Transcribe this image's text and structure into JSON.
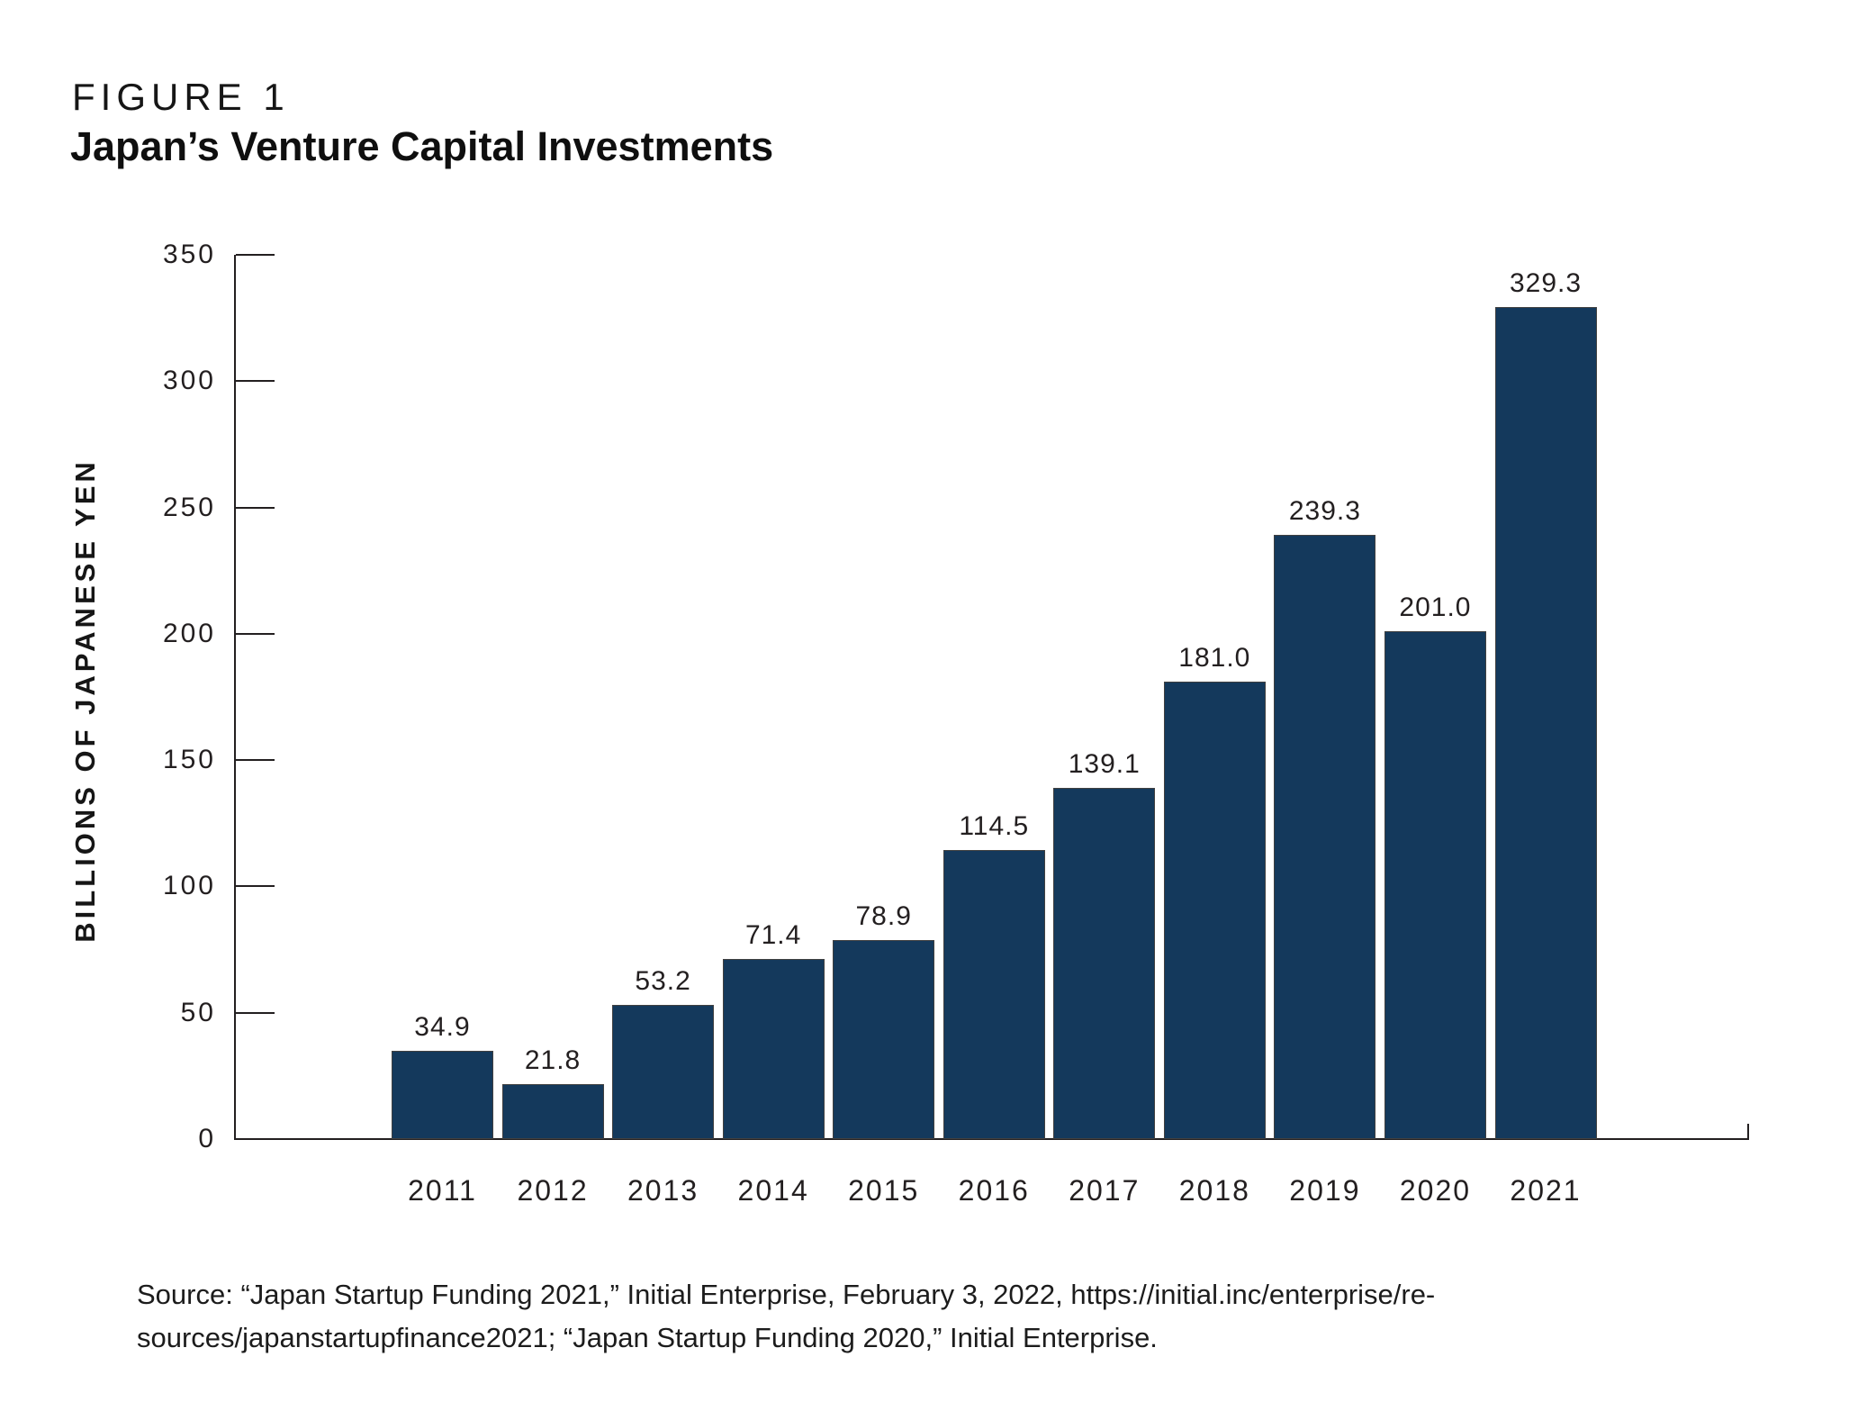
{
  "figure": {
    "label": "FIGURE 1",
    "title": "Japan’s Venture Capital Investments"
  },
  "chart_data": {
    "type": "bar",
    "title": "Japan’s Venture Capital Investments",
    "categories": [
      "2011",
      "2012",
      "2013",
      "2014",
      "2015",
      "2016",
      "2017",
      "2018",
      "2019",
      "2020",
      "2021"
    ],
    "values": [
      34.9,
      21.8,
      53.2,
      71.4,
      78.9,
      114.5,
      139.1,
      181.0,
      239.3,
      201.0,
      329.3
    ],
    "value_labels": [
      "34.9",
      "21.8",
      "53.2",
      "71.4",
      "78.9",
      "114.5",
      "139.1",
      "181.0",
      "239.3",
      "201.0",
      "329.3"
    ],
    "xlabel": "",
    "ylabel": "BILLIONS OF JAPANESE YEN",
    "ylim": [
      0,
      350
    ],
    "yticks": [
      0,
      50,
      100,
      150,
      200,
      250,
      300,
      350
    ],
    "ytick_labels": [
      "0",
      "50",
      "100",
      "150",
      "200",
      "250",
      "300",
      "350"
    ],
    "grid": false,
    "legend_position": "none",
    "bar_color": "#14395C",
    "axis_color": "#231f20",
    "label_color": "#231f20"
  },
  "source": {
    "line1": "Source: “Japan Startup Funding 2021,” Initial Enterprise, February 3, 2022, https://initial.inc/enterprise/re-",
    "line2": "sources/japanstartupfinance2021; “Japan Startup Funding 2020,” Initial Enterprise."
  }
}
